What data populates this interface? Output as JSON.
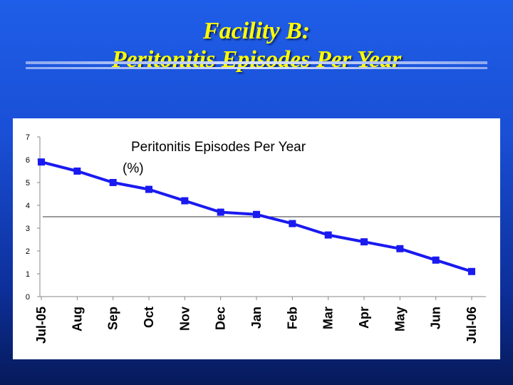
{
  "slide": {
    "title_line1": "Facility B:",
    "title_line2": "Peritonitis Episodes Per Year"
  },
  "chart_data": {
    "type": "line",
    "title": "Peritonitis Episodes Per Year",
    "subtitle": "(%)",
    "categories": [
      "Jul-05",
      "Aug",
      "Sep",
      "Oct",
      "Nov",
      "Dec",
      "Jan",
      "Feb",
      "Mar",
      "Apr",
      "May",
      "Jun",
      "Jul-06"
    ],
    "series": [
      {
        "values": [
          5.9,
          5.5,
          5.0,
          4.7,
          4.2,
          3.7,
          3.6,
          3.2,
          2.7,
          2.4,
          2.1,
          1.6,
          1.1
        ],
        "color": "#1a1af0"
      }
    ],
    "reference_line": 3.5,
    "ylim": [
      0,
      7
    ],
    "yticks": [
      0,
      1,
      2,
      3,
      4,
      5,
      6,
      7
    ],
    "grid": false,
    "legend": "none",
    "colors": {
      "line": "#1a1af0",
      "marker": "#1a1af0",
      "reference": "#333333"
    }
  }
}
